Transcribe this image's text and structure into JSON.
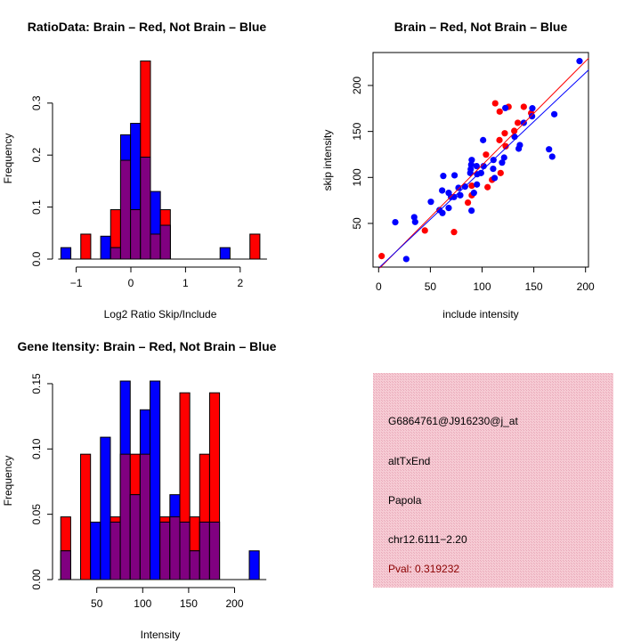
{
  "colors": {
    "red": "#ff0000",
    "blue": "#0000ff",
    "overlap": "#800080",
    "info_bg": "#f4c2cd",
    "pval": "#8b0000"
  },
  "chart_data": [
    {
      "type": "bar",
      "title": "RatioData: Brain – Red, Not Brain – Blue",
      "xlabel": "Log2 Ratio Skip/Include",
      "ylabel": "Frequency",
      "bin_start": -1.28,
      "bin_width": 0.182,
      "xticks": [
        -1,
        0,
        1,
        2
      ],
      "xtick_labels": [
        "−1",
        "0",
        "1",
        "2"
      ],
      "yticks": [
        0,
        0.1,
        0.2,
        0.3
      ],
      "ytick_labels": [
        "0.0",
        "0.1",
        "0.2",
        "0.3"
      ],
      "series": [
        {
          "name": "Brain",
          "color": "red",
          "values": [
            0,
            0,
            0.048,
            0,
            0,
            0.095,
            0.19,
            0.095,
            0.381,
            0.048,
            0.095,
            0,
            0,
            0,
            0,
            0,
            0,
            0,
            0,
            0.048
          ]
        },
        {
          "name": "Not Brain",
          "color": "blue",
          "values": [
            0.022,
            0,
            0,
            0,
            0.044,
            0.022,
            0.239,
            0.261,
            0.196,
            0.13,
            0.065,
            0,
            0,
            0,
            0,
            0,
            0.022,
            0,
            0,
            0
          ]
        }
      ]
    },
    {
      "type": "scatter",
      "title": "Brain – Red, Not Brain – Blue",
      "xlabel": "include intensity",
      "ylabel": "skip intensity",
      "xlim": [
        -5.4,
        203
      ],
      "ylim": [
        2.5,
        235.8
      ],
      "xticks": [
        0,
        50,
        100,
        150,
        200
      ],
      "xtick_labels": [
        "0",
        "50",
        "100",
        "150",
        "200"
      ],
      "yticks": [
        50,
        100,
        150,
        200
      ],
      "ytick_labels": [
        "50",
        "100",
        "150",
        "200"
      ],
      "series": [
        {
          "name": "Brain",
          "color": "red",
          "fit": {
            "slope": 1.13,
            "intercept": 0.3
          },
          "points": [
            [
              2.9,
              14.5
            ],
            [
              44.7,
              42.3
            ],
            [
              72.9,
              40.6
            ],
            [
              86.3,
              72.6
            ],
            [
              90,
              80.6
            ],
            [
              90,
              91
            ],
            [
              105.3,
              89.4
            ],
            [
              103.8,
              124.8
            ],
            [
              109.6,
              97.4
            ],
            [
              112.7,
              180.6
            ],
            [
              117,
              171.6
            ],
            [
              125.6,
              176.8
            ],
            [
              116.8,
              140.6
            ],
            [
              117.9,
              104.8
            ],
            [
              121.9,
              148
            ],
            [
              122.8,
              133.9
            ],
            [
              131.1,
              150.6
            ],
            [
              134.5,
              159.4
            ],
            [
              140.3,
              176.8
            ],
            [
              147.4,
              170
            ]
          ]
        },
        {
          "name": "Not Brain",
          "color": "blue",
          "fit": {
            "slope": 1.062,
            "intercept": 1.4
          },
          "points": [
            [
              194.2,
              226.5
            ],
            [
              16.1,
              51.3
            ],
            [
              26.7,
              11.3
            ],
            [
              34.4,
              56.8
            ],
            [
              35.3,
              51.6
            ],
            [
              50.5,
              73.5
            ],
            [
              58.8,
              64.5
            ],
            [
              61.7,
              61.3
            ],
            [
              61.4,
              85.8
            ],
            [
              62.5,
              101.6
            ],
            [
              67.7,
              83.2
            ],
            [
              67.7,
              66.8
            ],
            [
              70,
              78.7
            ],
            [
              72.9,
              78.7
            ],
            [
              73.4,
              102.3
            ],
            [
              77.2,
              88.7
            ],
            [
              78.9,
              80.6
            ],
            [
              83.5,
              90
            ],
            [
              89,
              109
            ],
            [
              89.5,
              113.9
            ],
            [
              90,
              119
            ],
            [
              88.6,
              104.8
            ],
            [
              89.8,
              63.9
            ],
            [
              92.1,
              83.2
            ],
            [
              95,
              92.3
            ],
            [
              94.7,
              112.3
            ],
            [
              95.2,
              103.5
            ],
            [
              99,
              104.8
            ],
            [
              101,
              140.6
            ],
            [
              101.5,
              112.3
            ],
            [
              111,
              119
            ],
            [
              110.7,
              109.4
            ],
            [
              112.1,
              99.4
            ],
            [
              119.3,
              116.1
            ],
            [
              121.3,
              121.6
            ],
            [
              122.5,
              175.5
            ],
            [
              131.4,
              144.2
            ],
            [
              135.4,
              131.3
            ],
            [
              136.5,
              135.2
            ],
            [
              140.3,
              159.4
            ],
            [
              148.6,
              175.2
            ],
            [
              148.3,
              166.5
            ],
            [
              164.7,
              130.6
            ],
            [
              167.8,
              122.6
            ],
            [
              169.8,
              168.7
            ]
          ]
        }
      ]
    },
    {
      "type": "bar",
      "title": "Gene Itensity: Brain – Red, Not Brain – Blue",
      "xlabel": "Intensity",
      "ylabel": "Frequency",
      "bin_start": 10.8,
      "bin_width": 10.8,
      "xticks": [
        50,
        100,
        150,
        200
      ],
      "xtick_labels": [
        "50",
        "100",
        "150",
        "200"
      ],
      "yticks": [
        0,
        0.05,
        0.1,
        0.15
      ],
      "ytick_labels": [
        "0.00",
        "0.05",
        "0.10",
        "0.15"
      ],
      "series": [
        {
          "name": "Brain",
          "color": "red",
          "values": [
            0.048,
            0,
            0.096,
            0,
            0,
            0.048,
            0.096,
            0.096,
            0.096,
            0,
            0.048,
            0.048,
            0.143,
            0.048,
            0.096,
            0.143,
            0,
            0,
            0,
            0
          ]
        },
        {
          "name": "Not Brain",
          "color": "blue",
          "values": [
            0.022,
            0,
            0,
            0.044,
            0.109,
            0.044,
            0.152,
            0.065,
            0.13,
            0.152,
            0.044,
            0.065,
            0.044,
            0.022,
            0.044,
            0.044,
            0,
            0,
            0,
            0.022
          ]
        }
      ]
    }
  ],
  "info": {
    "probe_id": "G6864761@J916230@j_at",
    "event_type": "altTxEnd",
    "gene": "Papola",
    "location": "chr12.6111−2.20",
    "pval": "Pval: 0.319232"
  }
}
